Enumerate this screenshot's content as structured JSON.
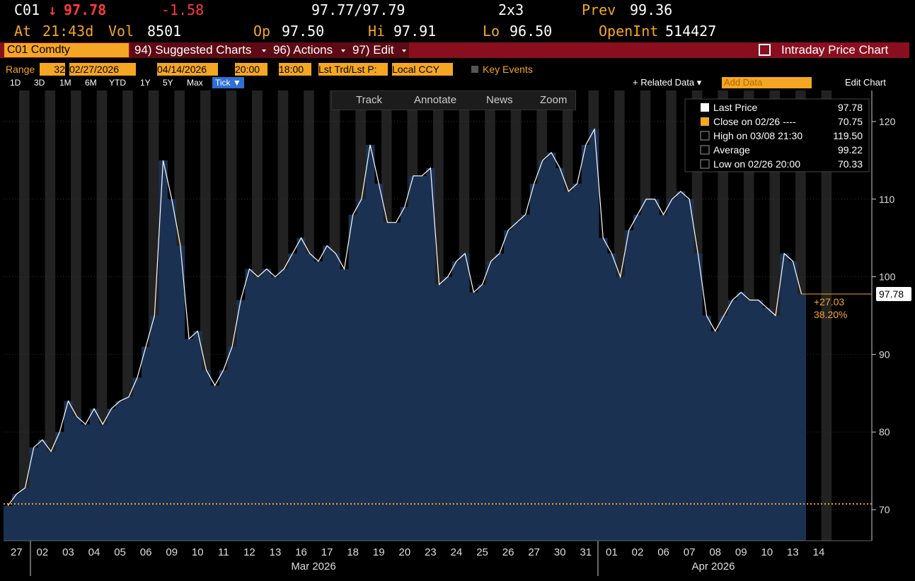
{
  "header": {
    "ticker": "C01",
    "last": "97.78",
    "change": "-1.58",
    "bid_ask": "97.77/97.79",
    "size": "2x3",
    "prev_label": "Prev",
    "prev": "99.36",
    "at_label": "At",
    "time": "21:43d",
    "vol_label": "Vol",
    "vol": "8501",
    "open_label": "Op",
    "open": "97.50",
    "hi_label": "Hi",
    "hi": "97.91",
    "lo_label": "Lo",
    "lo": "96.50",
    "oi_label": "OpenInt",
    "oi": "514427"
  },
  "menu": {
    "security": "C01 Comdty",
    "items": [
      "94) Suggested Charts",
      "96) Actions",
      "97) Edit"
    ],
    "title": "Intraday Price Chart"
  },
  "range": {
    "label": "Range",
    "count": "32",
    "start": "02/27/2026",
    "end": "04/14/2026",
    "t1": "20:00",
    "t2": "18:00",
    "field": "Lst Trd/Lst P:",
    "ccy": "Local CCY",
    "key": "Key Events"
  },
  "periods": [
    "1D",
    "3D",
    "1M",
    "6M",
    "YTD",
    "1Y",
    "5Y",
    "Max",
    "Tick ▼"
  ],
  "toolbar": {
    "related": "+ Related Data ▾",
    "add": "Add Data",
    "edit": "Edit Chart"
  },
  "tools": [
    "Track",
    "Annotate",
    "News",
    "Zoom"
  ],
  "chart_data": {
    "type": "area",
    "color": "#1b3152",
    "line_color": "#ffffff",
    "categories": [
      null,
      "27",
      null,
      null,
      "02",
      null,
      null,
      "03",
      null,
      null,
      "04",
      null,
      null,
      "05",
      null,
      null,
      "06",
      null,
      null,
      "09",
      null,
      null,
      "10",
      null,
      null,
      "11",
      null,
      null,
      "12",
      null,
      null,
      "13",
      null,
      null,
      "16",
      null,
      null,
      "17",
      null,
      null,
      "18",
      null,
      null,
      "19",
      null,
      null,
      "20",
      null,
      null,
      "23",
      null,
      null,
      "24",
      null,
      null,
      "25",
      null,
      null,
      "26",
      null,
      null,
      "27",
      null,
      null,
      "30",
      null,
      null,
      "31",
      null,
      null,
      "01",
      null,
      null,
      "02",
      null,
      null,
      "06",
      null,
      null,
      "07",
      null,
      null,
      "08",
      null,
      null,
      "09",
      null,
      null,
      "10",
      null,
      null,
      "13",
      null,
      null,
      "14",
      null
    ],
    "values": [
      70.5,
      72,
      72.8,
      78,
      79,
      77.5,
      80,
      84,
      82,
      81,
      83,
      81,
      83,
      84,
      84.5,
      87,
      91,
      95,
      115,
      110,
      104,
      92,
      93,
      88,
      86,
      88,
      91,
      97,
      101,
      100,
      101,
      100,
      101,
      103,
      105,
      103,
      102,
      104,
      103,
      101,
      108,
      110,
      117,
      112,
      107,
      107,
      109,
      113,
      113,
      114,
      99,
      100,
      102,
      103,
      98,
      99,
      102,
      103,
      106,
      107,
      108,
      112,
      115,
      116,
      114,
      111,
      112,
      117,
      119,
      105,
      103,
      100,
      106,
      108,
      110,
      110,
      108,
      110,
      111,
      110,
      103,
      95,
      93,
      95,
      97,
      98,
      97,
      97,
      96,
      95,
      103,
      102,
      97.78,
      null,
      null,
      null
    ],
    "ylim": [
      66,
      124
    ],
    "yticks": [
      70,
      80,
      90,
      100,
      110,
      120
    ],
    "month_labels": [
      "Mar 2026",
      "Apr 2026"
    ],
    "reference": {
      "name": "Close on 02/26",
      "value": 70.75,
      "color": "#f5a623"
    },
    "last_price": 97.78,
    "change_labels": [
      "+27.03",
      "38.20%"
    ],
    "legend": [
      {
        "label": "Last Price",
        "value": "97.78"
      },
      {
        "label": "Close on 02/26 ----",
        "value": "70.75"
      },
      {
        "label": "High on 03/08 21:30",
        "value": "119.50"
      },
      {
        "label": "Average",
        "value": "99.22"
      },
      {
        "label": "Low on 02/26 20:00",
        "value": "70.33"
      }
    ]
  }
}
